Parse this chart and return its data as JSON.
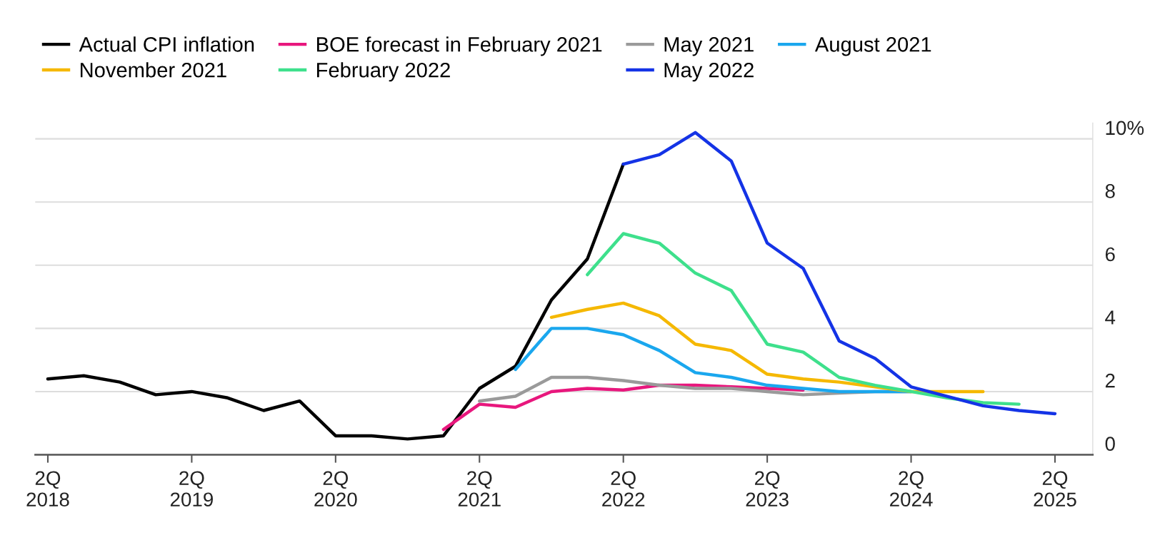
{
  "chart_data": {
    "type": "line",
    "categories": [
      "2Q\n2018",
      null,
      null,
      null,
      "2Q\n2019",
      null,
      null,
      null,
      "2Q\n2020",
      null,
      null,
      null,
      "2Q\n2021",
      null,
      null,
      null,
      "2Q\n2022",
      null,
      null,
      null,
      "2Q\n2023",
      null,
      null,
      null,
      "2Q\n2024",
      null,
      null,
      null,
      "2Q\n2025"
    ],
    "ylim": [
      0,
      10.5
    ],
    "yticks": [
      0,
      2,
      4,
      6,
      8,
      {
        "value": 10,
        "label": "10%"
      }
    ],
    "grid": "y",
    "legend": "top left",
    "line_style": "solid",
    "series": [
      {
        "name": "Actual CPI inflation",
        "color": "#000000",
        "values": [
          2.4,
          2.5,
          2.3,
          1.9,
          2.0,
          1.8,
          1.4,
          1.7,
          0.6,
          0.6,
          0.5,
          0.6,
          2.1,
          2.8,
          4.9,
          6.2,
          9.2,
          null,
          null,
          null,
          null,
          null,
          null,
          null,
          null,
          null,
          null,
          null,
          null
        ]
      },
      {
        "name": "BOE forecast in February 2021",
        "color": "#e8177d",
        "values": [
          null,
          null,
          null,
          null,
          null,
          null,
          null,
          null,
          null,
          null,
          null,
          0.8,
          1.6,
          1.5,
          2.0,
          2.1,
          2.05,
          2.2,
          2.2,
          2.15,
          2.1,
          2.05,
          null,
          null,
          null,
          null,
          null,
          null,
          null
        ]
      },
      {
        "name": "May 2021",
        "color": "#9a9a9a",
        "values": [
          null,
          null,
          null,
          null,
          null,
          null,
          null,
          null,
          null,
          null,
          null,
          null,
          1.7,
          1.85,
          2.45,
          2.45,
          2.35,
          2.2,
          2.1,
          2.1,
          2.0,
          1.9,
          1.95,
          2.0,
          2.0,
          null,
          null,
          null,
          null
        ]
      },
      {
        "name": "August 2021",
        "color": "#1aa7ee",
        "values": [
          null,
          null,
          null,
          null,
          null,
          null,
          null,
          null,
          null,
          null,
          null,
          null,
          null,
          2.7,
          4.0,
          4.0,
          3.8,
          3.3,
          2.6,
          2.45,
          2.2,
          2.1,
          2.0,
          2.0,
          2.0,
          null,
          null,
          null,
          null
        ]
      },
      {
        "name": "November 2021",
        "color": "#f5b800",
        "values": [
          null,
          null,
          null,
          null,
          null,
          null,
          null,
          null,
          null,
          null,
          null,
          null,
          null,
          null,
          4.35,
          4.6,
          4.8,
          4.4,
          3.5,
          3.3,
          2.55,
          2.4,
          2.3,
          2.15,
          2.0,
          2.0,
          2.0,
          null,
          null
        ]
      },
      {
        "name": "February 2022",
        "color": "#3ee08c",
        "values": [
          null,
          null,
          null,
          null,
          null,
          null,
          null,
          null,
          null,
          null,
          null,
          null,
          null,
          null,
          null,
          5.7,
          7.0,
          6.7,
          5.75,
          5.2,
          3.5,
          3.25,
          2.45,
          2.2,
          2.0,
          1.8,
          1.65,
          1.6,
          null
        ]
      },
      {
        "name": "May 2022",
        "color": "#1433e6",
        "values": [
          null,
          null,
          null,
          null,
          null,
          null,
          null,
          null,
          null,
          null,
          null,
          null,
          null,
          null,
          null,
          null,
          9.2,
          9.5,
          10.2,
          9.3,
          6.7,
          5.9,
          3.6,
          3.05,
          2.15,
          1.85,
          1.55,
          1.4,
          1.3
        ]
      }
    ]
  }
}
